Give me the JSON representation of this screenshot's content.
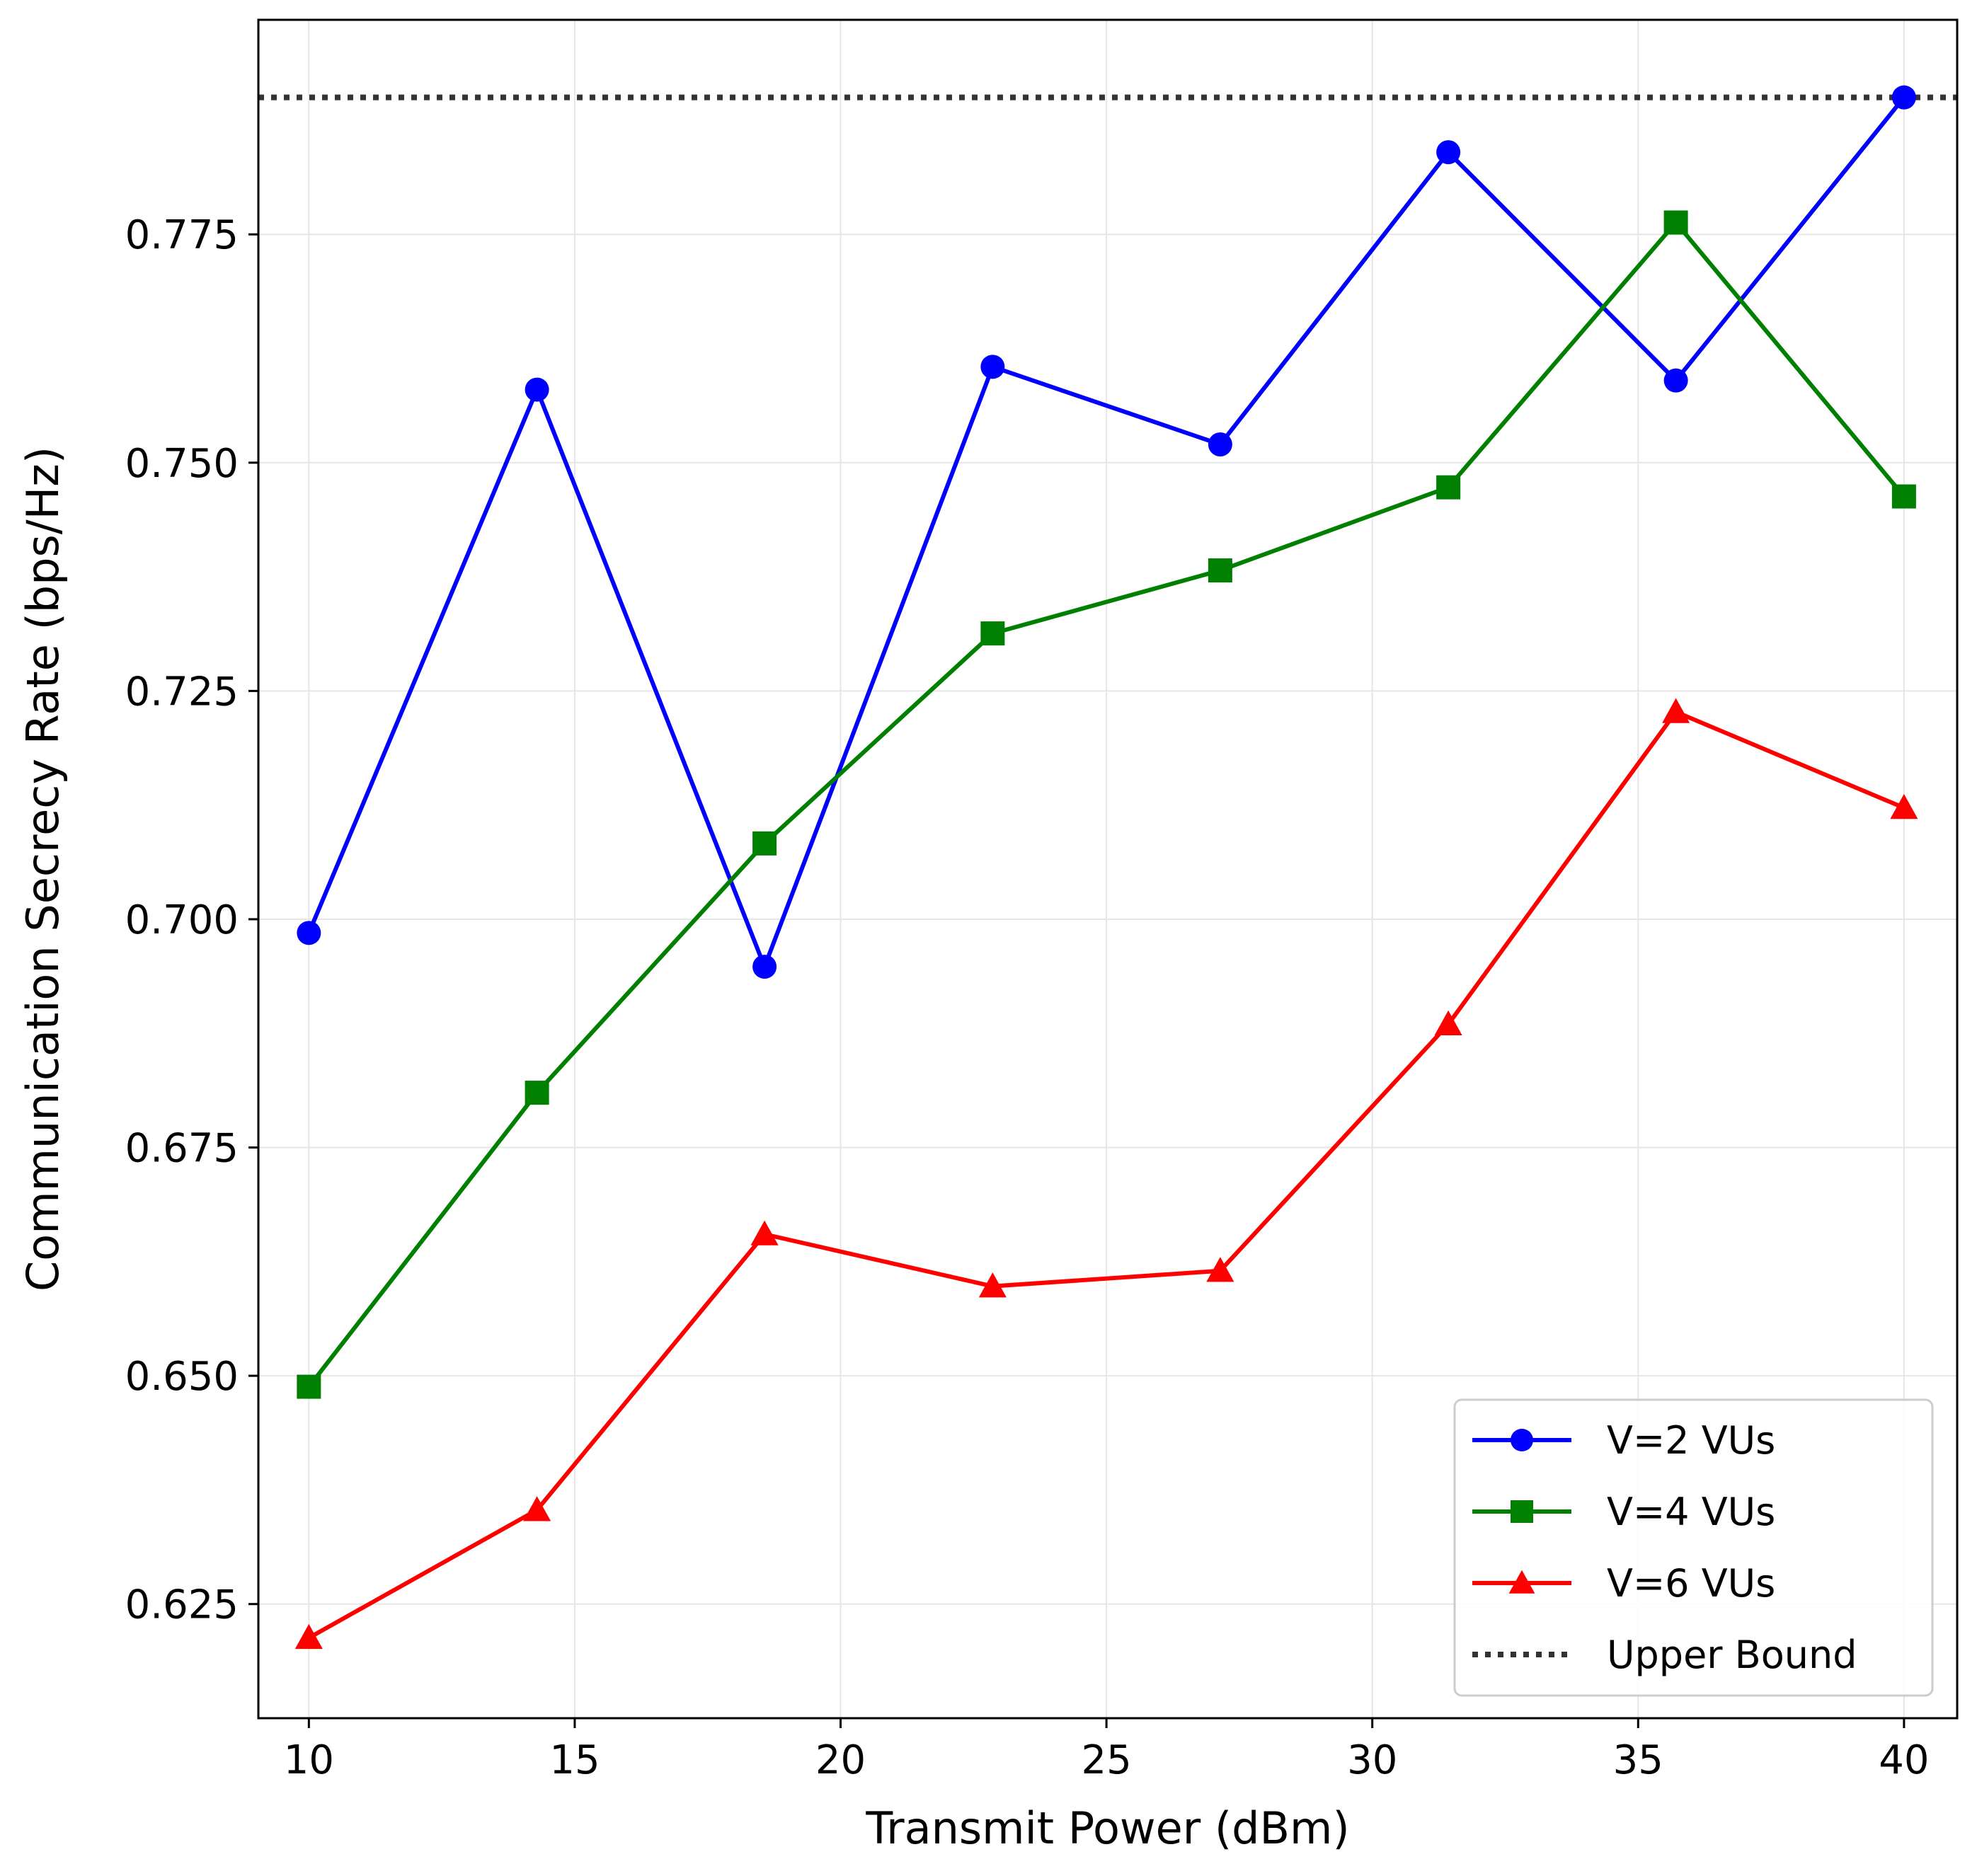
{
  "chart_data": {
    "type": "line",
    "title": "",
    "xlabel": "Transmit Power (dBm)",
    "ylabel": "Communication Secrecy Rate (bps/Hz)",
    "xlim": [
      9.05,
      41.0
    ],
    "ylim": [
      0.6125,
      0.7985
    ],
    "xticks": [
      10,
      15,
      20,
      25,
      30,
      35,
      40
    ],
    "yticks": [
      0.625,
      0.65,
      0.675,
      0.7,
      0.725,
      0.75,
      0.775
    ],
    "grid": true,
    "legend_position": "lower-right",
    "x": [
      10,
      14.29,
      18.57,
      22.86,
      27.14,
      31.43,
      35.71,
      40
    ],
    "series": [
      {
        "name": "V=2 VUs",
        "color": "#0000ff",
        "marker": "circle",
        "values": [
          0.6985,
          0.758,
          0.6948,
          0.7605,
          0.752,
          0.784,
          0.759,
          0.79
        ]
      },
      {
        "name": "V=4 VUs",
        "color": "#008000",
        "marker": "square",
        "values": [
          0.6488,
          0.681,
          0.7083,
          0.7313,
          0.7382,
          0.7473,
          0.7763,
          0.7463
        ]
      },
      {
        "name": "V=6 VUs",
        "color": "#ff0000",
        "marker": "triangle",
        "values": [
          0.6213,
          0.6353,
          0.6655,
          0.6598,
          0.6615,
          0.6885,
          0.7227,
          0.7122
        ]
      }
    ],
    "reference_lines": [
      {
        "name": "Upper Bound",
        "color": "#333333",
        "style": "dotted",
        "value": 0.79
      }
    ]
  }
}
